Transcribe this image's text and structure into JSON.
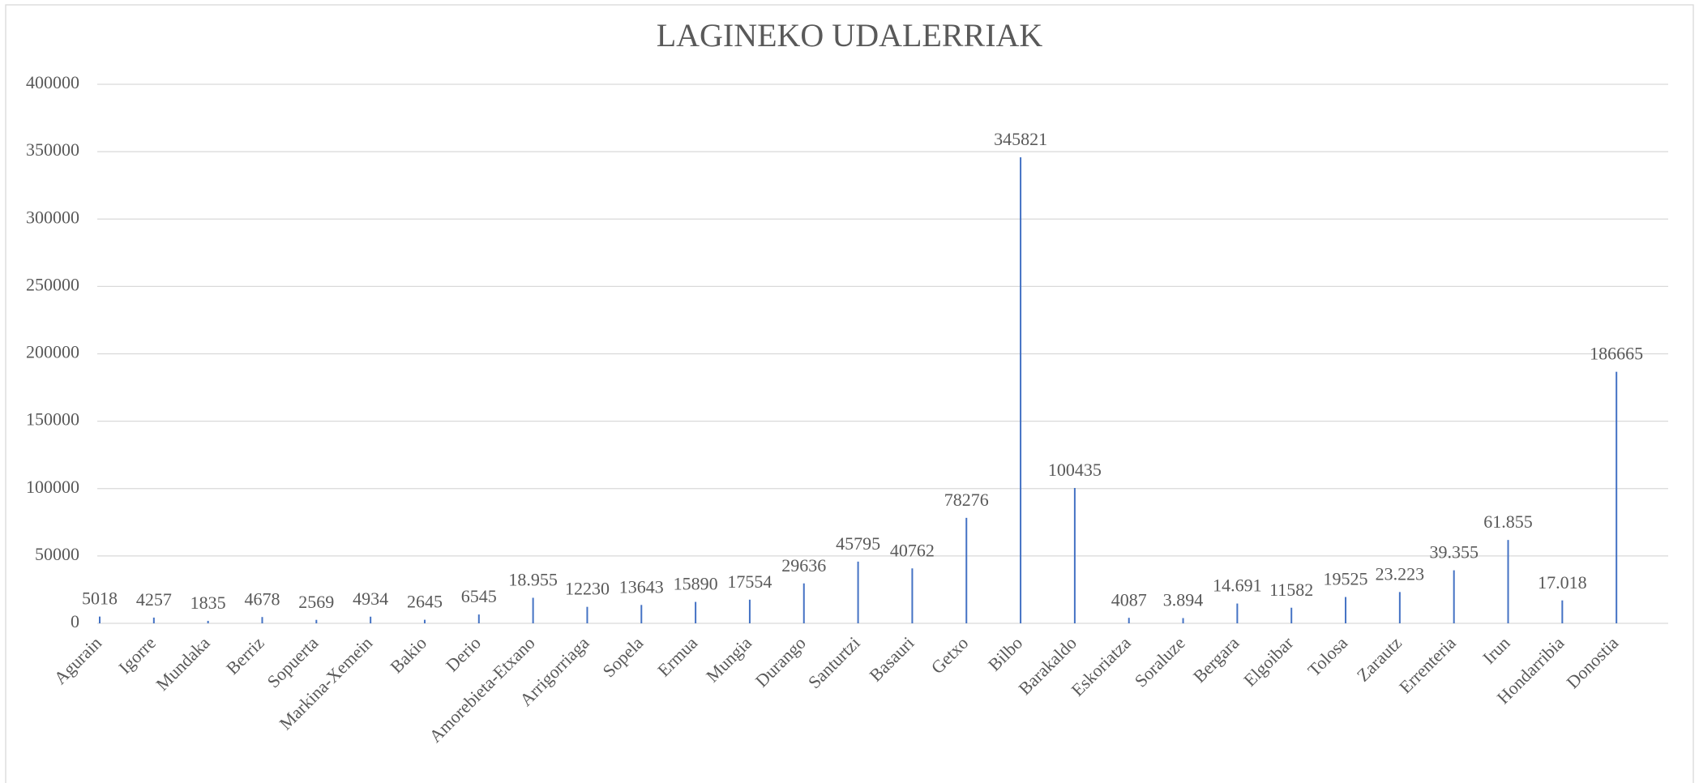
{
  "chart_data": {
    "type": "bar",
    "title": "LAGINEKO UDALERRIAK",
    "categories": [
      "Agurain",
      "Igorre",
      "Mundaka",
      "Berriz",
      "Sopuerta",
      "Markina-Xemein",
      "Bakio",
      "Derio",
      "Amorebieta-Etxano",
      "Arrigorriaga",
      "Sopela",
      "Ermua",
      "Mungia",
      "Durango",
      "Santurtzi",
      "Basauri",
      "Getxo",
      "Bilbo",
      "Barakaldo",
      "Eskoriatza",
      "Soraluze",
      "Bergara",
      "Elgoibar",
      "Tolosa",
      "Zarautz",
      "Errenteria",
      "Irun",
      "Hondarribia",
      "Donostia"
    ],
    "values": [
      5018,
      4257,
      1835,
      4678,
      2569,
      4934,
      2645,
      6545,
      18955,
      12230,
      13643,
      15890,
      17554,
      29636,
      45795,
      40762,
      78276,
      345821,
      100435,
      4087,
      3894,
      14691,
      11582,
      19525,
      23223,
      39355,
      61855,
      17018,
      186665
    ],
    "value_labels": [
      "5018",
      "4257",
      "1835",
      "4678",
      "2569",
      "4934",
      "2645",
      "6545",
      "18.955",
      "12230",
      "13643",
      "15890",
      "17554",
      "29636",
      "45795",
      "40762",
      "78276",
      "345821",
      "100435",
      "4087",
      "3.894",
      "14.691",
      "11582",
      "19525",
      "23.223",
      "39.355",
      "61.855",
      "17.018",
      "186665"
    ],
    "color": "#4472c4",
    "ylim": [
      0,
      400000
    ],
    "yticks": [
      0,
      50000,
      100000,
      150000,
      200000,
      250000,
      300000,
      350000,
      400000
    ],
    "grid": true
  }
}
